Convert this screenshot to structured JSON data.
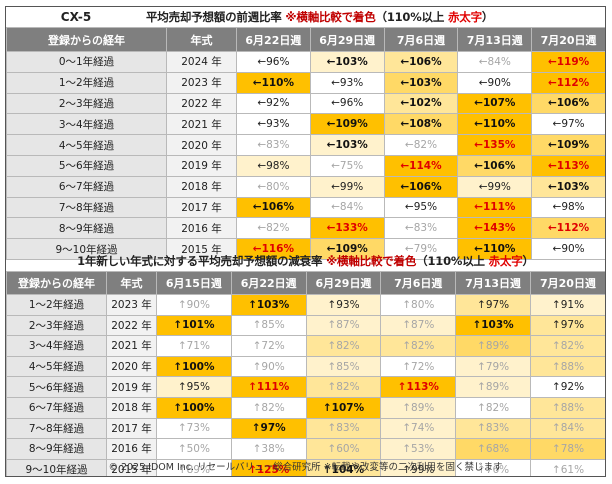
{
  "colors": {
    "dark": "#ffc000",
    "mid": "#ffd966",
    "light": "#ffe699",
    "pale": "#fff2cc",
    "white": "#ffffff",
    "red": "#e00000"
  },
  "table1": {
    "model": "CX-5",
    "title_main": "平均売却予想額の前週比率",
    "title_note": "※横軸比較で着色",
    "title_cond": "（110%以上",
    "title_red": "赤太字",
    "title_close": "）",
    "header_label": "登録からの経年",
    "header_year": "年式",
    "weeks": [
      "6月22日週",
      "6月29日週",
      "7月6日週",
      "7月13日週",
      "7月20日週"
    ]
  },
  "table2": {
    "title_main": "1年新しい年式に対する平均売却予想額の減衰率",
    "title_note": "※横軸比較で着色",
    "title_cond": "（110%以上",
    "title_red": "赤太字",
    "title_close": "）",
    "header_label": "登録からの経年",
    "header_year": "年式",
    "weeks": [
      "6月15日週",
      "6月22日週",
      "6月29日週",
      "7月6日週",
      "7月13日週",
      "7月20日週"
    ]
  },
  "chart_data": [
    {
      "type": "table",
      "title": "平均売却予想額の前週比率",
      "columns": [
        "6月22日週",
        "6月29日週",
        "7月6日週",
        "7月13日週",
        "7月20日週"
      ],
      "rows": [
        {
          "label": "0～1年経過",
          "year": "2024 年",
          "cells": [
            {
              "t": "←96%",
              "s": "norm",
              "c": "white"
            },
            {
              "t": "←103%",
              "s": "bold",
              "c": "pale"
            },
            {
              "t": "←106%",
              "s": "bold",
              "c": "light"
            },
            {
              "t": "←84%",
              "s": "faint",
              "c": "white"
            },
            {
              "t": "←119%",
              "s": "red",
              "c": "dark"
            }
          ]
        },
        {
          "label": "1～2年経過",
          "year": "2023 年",
          "cells": [
            {
              "t": "←110%",
              "s": "bold",
              "c": "dark"
            },
            {
              "t": "←93%",
              "s": "norm",
              "c": "white"
            },
            {
              "t": "←103%",
              "s": "bold",
              "c": "mid"
            },
            {
              "t": "←90%",
              "s": "norm",
              "c": "white"
            },
            {
              "t": "←112%",
              "s": "red",
              "c": "dark"
            }
          ]
        },
        {
          "label": "2～3年経過",
          "year": "2022 年",
          "cells": [
            {
              "t": "←92%",
              "s": "norm",
              "c": "white"
            },
            {
              "t": "←96%",
              "s": "norm",
              "c": "white"
            },
            {
              "t": "←102%",
              "s": "bold",
              "c": "light"
            },
            {
              "t": "←107%",
              "s": "bold",
              "c": "dark"
            },
            {
              "t": "←106%",
              "s": "bold",
              "c": "mid"
            }
          ]
        },
        {
          "label": "3～4年経過",
          "year": "2021 年",
          "cells": [
            {
              "t": "←93%",
              "s": "norm",
              "c": "white"
            },
            {
              "t": "←109%",
              "s": "bold",
              "c": "dark"
            },
            {
              "t": "←108%",
              "s": "bold",
              "c": "mid"
            },
            {
              "t": "←110%",
              "s": "bold",
              "c": "dark"
            },
            {
              "t": "←97%",
              "s": "norm",
              "c": "white"
            }
          ]
        },
        {
          "label": "4～5年経過",
          "year": "2020 年",
          "cells": [
            {
              "t": "←83%",
              "s": "faint",
              "c": "white"
            },
            {
              "t": "←103%",
              "s": "bold",
              "c": "pale"
            },
            {
              "t": "←82%",
              "s": "faint",
              "c": "white"
            },
            {
              "t": "←135%",
              "s": "red",
              "c": "dark"
            },
            {
              "t": "←109%",
              "s": "bold",
              "c": "mid"
            }
          ]
        },
        {
          "label": "5～6年経過",
          "year": "2019 年",
          "cells": [
            {
              "t": "←98%",
              "s": "norm",
              "c": "pale"
            },
            {
              "t": "←75%",
              "s": "faint",
              "c": "white"
            },
            {
              "t": "←114%",
              "s": "red",
              "c": "dark"
            },
            {
              "t": "←106%",
              "s": "bold",
              "c": "mid"
            },
            {
              "t": "←113%",
              "s": "red",
              "c": "dark"
            }
          ]
        },
        {
          "label": "6～7年経過",
          "year": "2018 年",
          "cells": [
            {
              "t": "←80%",
              "s": "faint",
              "c": "white"
            },
            {
              "t": "←99%",
              "s": "norm",
              "c": "pale"
            },
            {
              "t": "←106%",
              "s": "bold",
              "c": "dark"
            },
            {
              "t": "←99%",
              "s": "norm",
              "c": "pale"
            },
            {
              "t": "←103%",
              "s": "bold",
              "c": "light"
            }
          ]
        },
        {
          "label": "7～8年経過",
          "year": "2017 年",
          "cells": [
            {
              "t": "←106%",
              "s": "bold",
              "c": "dark"
            },
            {
              "t": "←84%",
              "s": "faint",
              "c": "white"
            },
            {
              "t": "←95%",
              "s": "norm",
              "c": "white"
            },
            {
              "t": "←111%",
              "s": "red",
              "c": "dark"
            },
            {
              "t": "←98%",
              "s": "norm",
              "c": "white"
            }
          ]
        },
        {
          "label": "8～9年経過",
          "year": "2016 年",
          "cells": [
            {
              "t": "←82%",
              "s": "faint",
              "c": "white"
            },
            {
              "t": "←133%",
              "s": "red",
              "c": "dark"
            },
            {
              "t": "←83%",
              "s": "faint",
              "c": "white"
            },
            {
              "t": "←143%",
              "s": "red",
              "c": "dark"
            },
            {
              "t": "←112%",
              "s": "red",
              "c": "mid"
            }
          ]
        },
        {
          "label": "9～10年経過",
          "year": "2015 年",
          "cells": [
            {
              "t": "←116%",
              "s": "red",
              "c": "dark"
            },
            {
              "t": "←109%",
              "s": "bold",
              "c": "mid"
            },
            {
              "t": "←79%",
              "s": "faint",
              "c": "white"
            },
            {
              "t": "←110%",
              "s": "bold",
              "c": "dark"
            },
            {
              "t": "←90%",
              "s": "norm",
              "c": "white"
            }
          ]
        }
      ]
    },
    {
      "type": "table",
      "title": "1年新しい年式に対する平均売却予想額の減衰率",
      "columns": [
        "6月15日週",
        "6月22日週",
        "6月29日週",
        "7月6日週",
        "7月13日週",
        "7月20日週"
      ],
      "rows": [
        {
          "label": "1～2年経過",
          "year": "2023 年",
          "cells": [
            {
              "t": "↑90%",
              "s": "faint",
              "c": "white"
            },
            {
              "t": "↑103%",
              "s": "bold",
              "c": "dark"
            },
            {
              "t": "↑93%",
              "s": "norm",
              "c": "pale"
            },
            {
              "t": "↑80%",
              "s": "faint",
              "c": "white"
            },
            {
              "t": "↑97%",
              "s": "norm",
              "c": "light"
            },
            {
              "t": "↑91%",
              "s": "norm",
              "c": "pale"
            }
          ]
        },
        {
          "label": "2～3年経過",
          "year": "2022 年",
          "cells": [
            {
              "t": "↑101%",
              "s": "bold",
              "c": "dark"
            },
            {
              "t": "↑85%",
              "s": "faint",
              "c": "white"
            },
            {
              "t": "↑87%",
              "s": "faint",
              "c": "pale"
            },
            {
              "t": "↑87%",
              "s": "faint",
              "c": "pale"
            },
            {
              "t": "↑103%",
              "s": "bold",
              "c": "dark"
            },
            {
              "t": "↑97%",
              "s": "norm",
              "c": "light"
            }
          ]
        },
        {
          "label": "3～4年経過",
          "year": "2021 年",
          "cells": [
            {
              "t": "↑71%",
              "s": "faint",
              "c": "white"
            },
            {
              "t": "↑72%",
              "s": "faint",
              "c": "white"
            },
            {
              "t": "↑82%",
              "s": "faint",
              "c": "light"
            },
            {
              "t": "↑82%",
              "s": "faint",
              "c": "light"
            },
            {
              "t": "↑89%",
              "s": "faint",
              "c": "mid"
            },
            {
              "t": "↑82%",
              "s": "faint",
              "c": "light"
            }
          ]
        },
        {
          "label": "4～5年経過",
          "year": "2020 年",
          "cells": [
            {
              "t": "↑100%",
              "s": "bold",
              "c": "dark"
            },
            {
              "t": "↑90%",
              "s": "faint",
              "c": "white"
            },
            {
              "t": "↑85%",
              "s": "faint",
              "c": "pale"
            },
            {
              "t": "↑72%",
              "s": "faint",
              "c": "white"
            },
            {
              "t": "↑79%",
              "s": "faint",
              "c": "pale"
            },
            {
              "t": "↑88%",
              "s": "faint",
              "c": "light"
            }
          ]
        },
        {
          "label": "5～6年経過",
          "year": "2019 年",
          "cells": [
            {
              "t": "↑95%",
              "s": "norm",
              "c": "pale"
            },
            {
              "t": "↑111%",
              "s": "red",
              "c": "dark"
            },
            {
              "t": "↑82%",
              "s": "faint",
              "c": "light"
            },
            {
              "t": "↑113%",
              "s": "red",
              "c": "dark"
            },
            {
              "t": "↑89%",
              "s": "faint",
              "c": "pale"
            },
            {
              "t": "↑92%",
              "s": "norm",
              "c": "white"
            }
          ]
        },
        {
          "label": "6～7年経過",
          "year": "2018 年",
          "cells": [
            {
              "t": "↑100%",
              "s": "bold",
              "c": "dark"
            },
            {
              "t": "↑82%",
              "s": "faint",
              "c": "white"
            },
            {
              "t": "↑107%",
              "s": "bold",
              "c": "dark"
            },
            {
              "t": "↑89%",
              "s": "faint",
              "c": "pale"
            },
            {
              "t": "↑82%",
              "s": "faint",
              "c": "white"
            },
            {
              "t": "↑88%",
              "s": "faint",
              "c": "light"
            }
          ]
        },
        {
          "label": "7～8年経過",
          "year": "2017 年",
          "cells": [
            {
              "t": "↑73%",
              "s": "faint",
              "c": "white"
            },
            {
              "t": "↑97%",
              "s": "bold",
              "c": "dark"
            },
            {
              "t": "↑83%",
              "s": "faint",
              "c": "light"
            },
            {
              "t": "↑74%",
              "s": "faint",
              "c": "pale"
            },
            {
              "t": "↑83%",
              "s": "faint",
              "c": "light"
            },
            {
              "t": "↑84%",
              "s": "faint",
              "c": "light"
            }
          ]
        },
        {
          "label": "8～9年経過",
          "year": "2016 年",
          "cells": [
            {
              "t": "↑50%",
              "s": "faint",
              "c": "white"
            },
            {
              "t": "↑38%",
              "s": "faint",
              "c": "white"
            },
            {
              "t": "↑60%",
              "s": "faint",
              "c": "light"
            },
            {
              "t": "↑53%",
              "s": "faint",
              "c": "pale"
            },
            {
              "t": "↑68%",
              "s": "faint",
              "c": "mid"
            },
            {
              "t": "↑78%",
              "s": "faint",
              "c": "mid"
            }
          ]
        },
        {
          "label": "9～10年経過",
          "year": "2015 年",
          "cells": [
            {
              "t": "↑89%",
              "s": "faint",
              "c": "white"
            },
            {
              "t": "↑125%",
              "s": "red",
              "c": "dark"
            },
            {
              "t": "↑104%",
              "s": "bold",
              "c": "light"
            },
            {
              "t": "↑99%",
              "s": "norm",
              "c": "pale"
            },
            {
              "t": "↑76%",
              "s": "faint",
              "c": "white"
            },
            {
              "t": "↑61%",
              "s": "faint",
              "c": "white"
            }
          ]
        }
      ]
    }
  ],
  "footer": {
    "text": "© 2025 IDOM Inc. リセールバリュー総合研究所 ※転載や改変等の二次利用を固く禁じます"
  }
}
